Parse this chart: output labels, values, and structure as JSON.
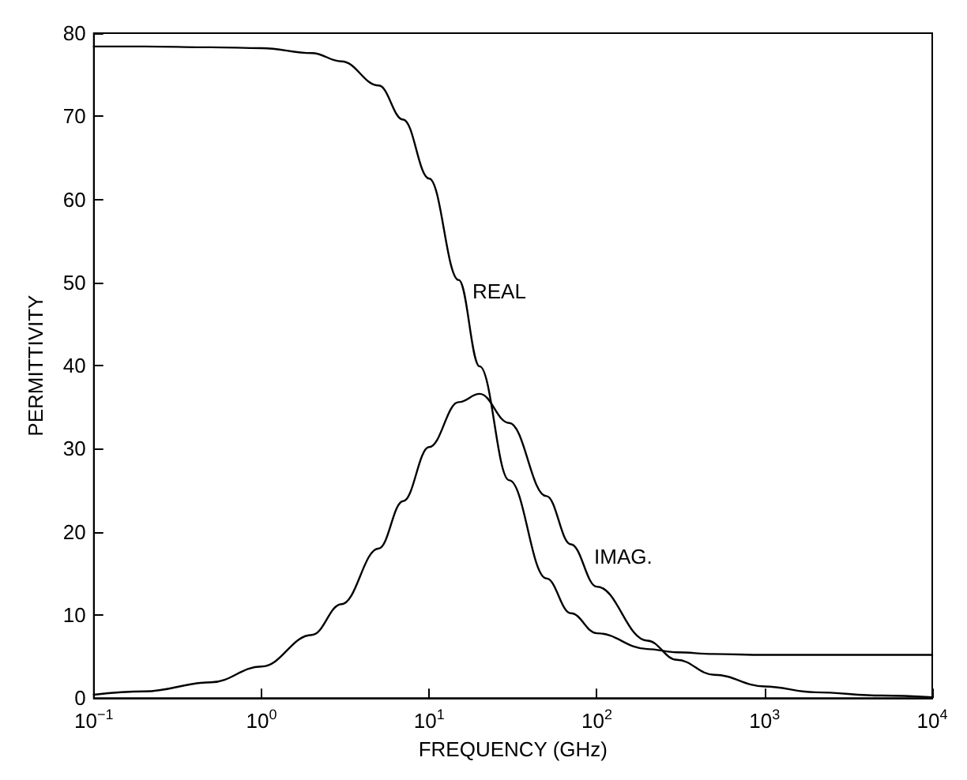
{
  "chart_data": {
    "type": "line",
    "xlabel": "FREQUENCY (GHz)",
    "ylabel": "PERMITTIVITY",
    "log": "x",
    "grid": false,
    "marker": "none",
    "line_style": "solid",
    "xlim": [
      0.1,
      10000
    ],
    "xticks": [
      {
        "value": 0.1,
        "label": "10$^{−1}$"
      },
      {
        "value": 1,
        "label": "10$^{0}$"
      },
      {
        "value": 10,
        "label": "10$^{1}$"
      },
      {
        "value": 100,
        "label": "10$^{2}$"
      },
      {
        "value": 1000,
        "label": "10$^{3}$"
      },
      {
        "value": 10000,
        "label": "10$^{4}$"
      }
    ],
    "ylim": [
      0,
      80
    ],
    "yticks": [
      0,
      10,
      20,
      30,
      40,
      50,
      60,
      70,
      80
    ],
    "x": [
      0.1,
      0.2,
      0.5,
      1,
      2,
      3,
      5,
      7,
      10,
      15,
      20,
      30,
      50,
      70,
      100,
      200,
      300,
      500,
      1000,
      2000,
      5000,
      10000
    ],
    "series": [
      {
        "color": "#000000",
        "values": [
          78.4,
          78.4,
          78.3,
          78.2,
          77.6,
          76.6,
          73.7,
          69.6,
          62.5,
          50.3,
          39.9,
          26.2,
          14.4,
          10.2,
          7.8,
          5.9,
          5.5,
          5.3,
          5.2,
          5.2,
          5.2,
          5.2
        ]
      },
      {
        "color": "#000000",
        "values": [
          0.4,
          0.8,
          1.9,
          3.8,
          7.6,
          11.3,
          18.0,
          23.7,
          30.2,
          35.6,
          36.6,
          33.1,
          24.3,
          18.5,
          13.4,
          6.9,
          4.6,
          2.8,
          1.4,
          0.7,
          0.3,
          0.1
        ]
      }
    ],
    "annotations": [
      "REAL",
      "IMAG."
    ]
  }
}
